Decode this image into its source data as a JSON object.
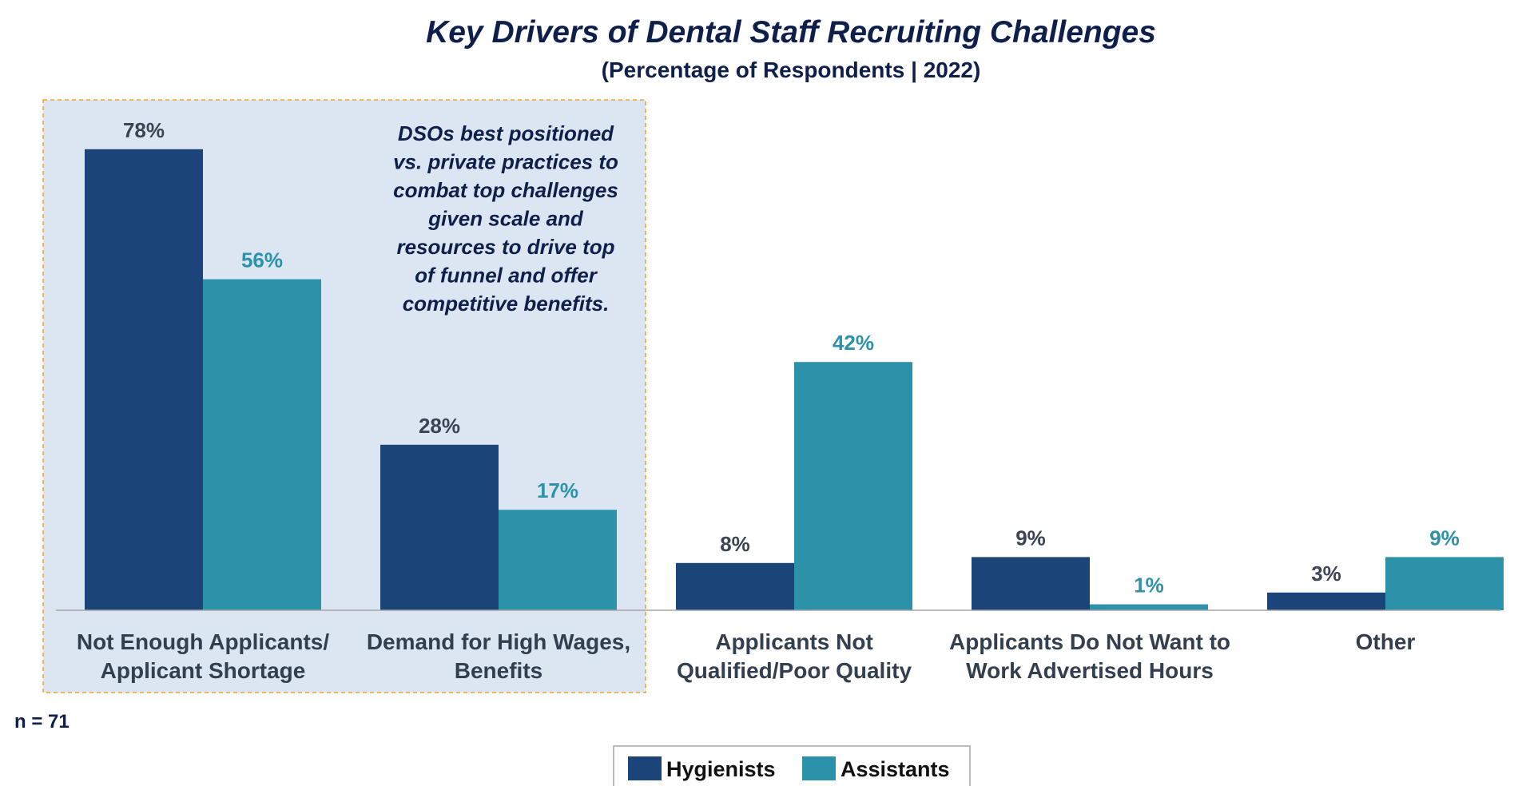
{
  "colors": {
    "hygienists": "#1b4478",
    "assistants": "#2b92a9",
    "hygienists_label": "#3a4454",
    "assistants_label": "#2b92a9",
    "highlight_fill": "#dce6f2",
    "highlight_border": "#f0a030",
    "axis": "#a6a6a6",
    "title": "#0f1f4b"
  },
  "chart_data": {
    "type": "bar",
    "title": "Key Drivers of Dental Staff Recruiting Challenges",
    "subtitle": "(Percentage of Respondents | 2022)",
    "categories": [
      [
        "Not Enough Applicants/",
        "Applicant Shortage"
      ],
      [
        "Demand for High Wages,",
        "Benefits"
      ],
      [
        "Applicants Not",
        "Qualified/Poor Quality"
      ],
      [
        "Applicants Do Not Want to",
        "Work Advertised Hours"
      ],
      [
        "Other"
      ]
    ],
    "series": [
      {
        "name": "Hygienists",
        "values": [
          78,
          28,
          8,
          9,
          3
        ],
        "labels": [
          "78%",
          "28%",
          "8%",
          "9%",
          "3%"
        ]
      },
      {
        "name": "Assistants",
        "values": [
          56,
          17,
          42,
          1,
          9
        ],
        "labels": [
          "56%",
          "17%",
          "42%",
          "1%",
          "9%"
        ]
      }
    ],
    "ylim": [
      0,
      90
    ],
    "grid": false,
    "legend_position": "bottom",
    "highlight_categories": [
      0,
      1
    ],
    "callout": [
      "DSOs best positioned",
      "vs. private practices to",
      "combat top challenges",
      "given scale and",
      "resources to drive top",
      "of funnel and offer",
      "competitive benefits."
    ],
    "footnote": "n = 71"
  }
}
